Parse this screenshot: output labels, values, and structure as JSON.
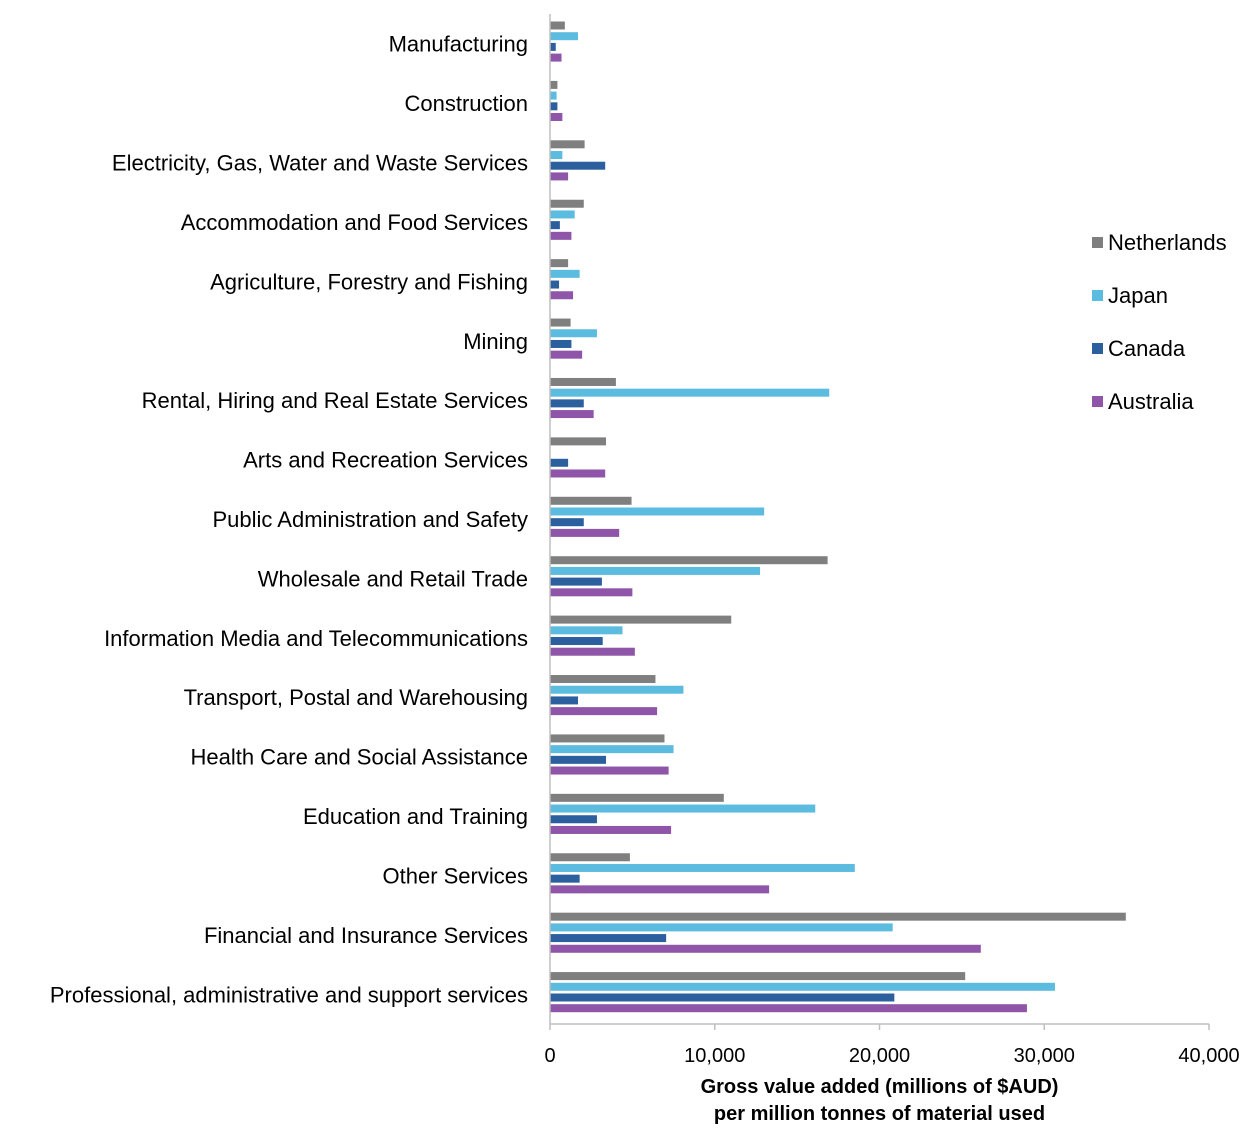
{
  "chart_data": {
    "type": "bar",
    "orientation": "horizontal",
    "categories": [
      "Manufacturing",
      "Construction",
      "Electricity, Gas, Water and Waste Services",
      "Accommodation and Food Services",
      "Agriculture, Forestry and Fishing",
      "Mining",
      "Rental, Hiring and Real Estate Services",
      "Arts and Recreation Services",
      "Public Administration and Safety",
      "Wholesale and Retail Trade",
      "Information Media and Telecommunications",
      "Transport, Postal and Warehousing",
      "Health Care and Social Assistance",
      "Education and Training",
      "Other Services",
      "Financial and Insurance Services",
      "Professional, administrative and support services"
    ],
    "series": [
      {
        "name": "Netherlands",
        "color": "#7f7f7f",
        "values": [
          900,
          450,
          2100,
          2050,
          1100,
          1250,
          4000,
          3400,
          4950,
          16850,
          11000,
          6400,
          6950,
          10550,
          4850,
          34950,
          25200
        ]
      },
      {
        "name": "Japan",
        "color": "#5bbcdf",
        "values": [
          1700,
          400,
          750,
          1500,
          1800,
          2850,
          16950,
          0,
          13000,
          12750,
          4400,
          8100,
          7500,
          16100,
          18500,
          20800,
          30650
        ]
      },
      {
        "name": "Canada",
        "color": "#2b5f9e",
        "values": [
          350,
          450,
          3350,
          600,
          550,
          1300,
          2050,
          1100,
          2050,
          3150,
          3200,
          1700,
          3400,
          2850,
          1800,
          7050,
          20900
        ]
      },
      {
        "name": "Australia",
        "color": "#8e55a8",
        "values": [
          700,
          750,
          1100,
          1300,
          1400,
          1950,
          2650,
          3350,
          4200,
          5000,
          5150,
          6500,
          7200,
          7350,
          13300,
          26150,
          28950
        ]
      }
    ],
    "xlim": [
      0,
      40000
    ],
    "x_ticks": [
      "0",
      "10,000",
      "20,000",
      "30,000",
      "40,000"
    ],
    "x_tick_values": [
      0,
      10000,
      20000,
      30000,
      40000
    ],
    "xlabel_lines": [
      "Gross value added (millions of $AUD)",
      "per million tonnes of material used"
    ],
    "legend_order": [
      "Netherlands",
      "Japan",
      "Canada",
      "Australia"
    ],
    "legend_position": "right",
    "grid": false
  }
}
